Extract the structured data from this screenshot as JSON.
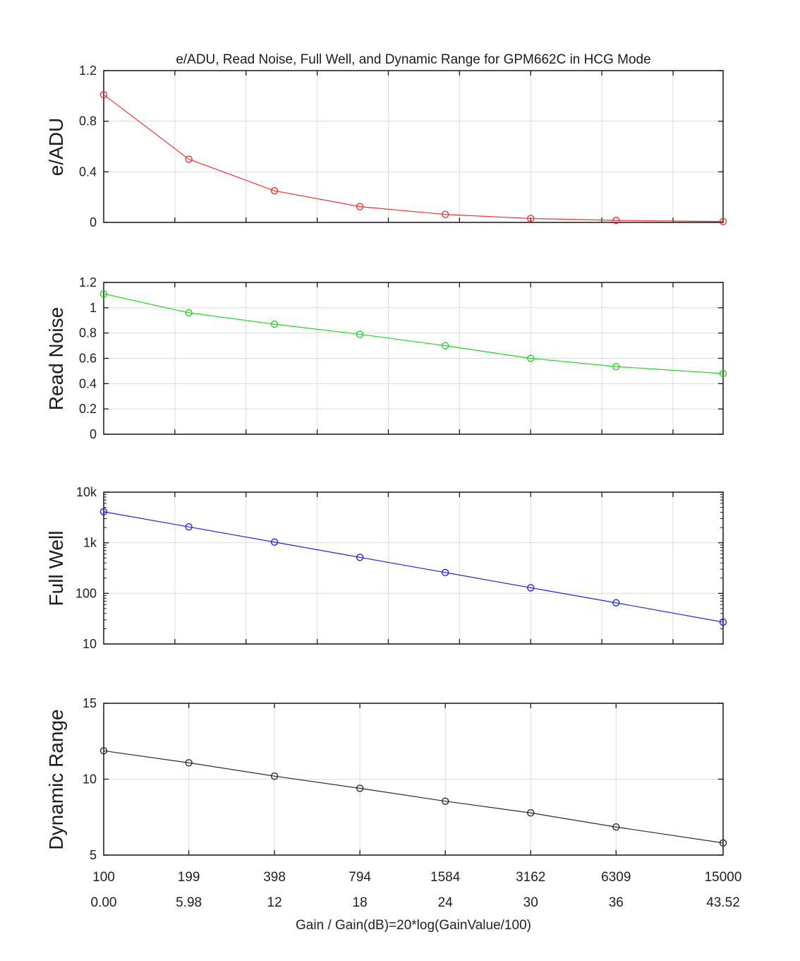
{
  "figure": {
    "title": "e/ADU, Read Noise, Full Well, and Dynamic Range for GPM662C in HCG Mode",
    "xlabel": "Gain / Gain(dB)=20*log(GainValue/100)",
    "background": "#ffffff",
    "colors": {
      "axis": "#161616",
      "grid": "#dcdcdc",
      "tick_text": "#212121"
    }
  },
  "chart_data": {
    "type": "line",
    "title": "e/ADU, Read Noise, Full Well, and Dynamic Range for GPM662C in HCG Mode",
    "xlabel": "Gain / Gain(dB)=20*log(GainValue/100)",
    "x_gain": [
      100,
      199,
      398,
      794,
      1584,
      3162,
      6309,
      15000
    ],
    "x_db": [
      0,
      5.98,
      12,
      18,
      24,
      30,
      36,
      43.52
    ],
    "x_tick_labels_gain": [
      "100",
      "199",
      "398",
      "794",
      "1584",
      "3162",
      "6309",
      "15000"
    ],
    "x_tick_labels_db": [
      "0.00",
      "5.98",
      "12",
      "18",
      "24",
      "30",
      "36",
      "43.52"
    ],
    "xlim_db": [
      0,
      43.52
    ],
    "grid": true,
    "legend": "none",
    "subplots": [
      {
        "name": "e-adu",
        "ylabel": "e/ADU",
        "color": "#f13131",
        "yscale": "linear",
        "ylim": [
          0,
          1.2
        ],
        "yticks": [
          0,
          0.4,
          0.8,
          1.2
        ],
        "ytick_labels": [
          "0",
          "0.4",
          "0.8",
          "1.2"
        ],
        "xgrid_db": [
          5,
          10,
          15,
          20,
          25,
          30,
          35,
          40
        ],
        "values": [
          1.01,
          0.5,
          0.25,
          0.125,
          0.063,
          0.031,
          0.016,
          0.007
        ]
      },
      {
        "name": "read-noise",
        "ylabel": "Read Noise",
        "color": "#22d422",
        "yscale": "linear",
        "ylim": [
          0,
          1.2
        ],
        "yticks": [
          0,
          0.2,
          0.4,
          0.6,
          0.8,
          1,
          1.2
        ],
        "ytick_labels": [
          "0",
          "0.2",
          "0.4",
          "0.6",
          "0.8",
          "1",
          "1.2"
        ],
        "xgrid_db": [
          5,
          10,
          15,
          20,
          25,
          30,
          35,
          40
        ],
        "values": [
          1.11,
          0.96,
          0.87,
          0.79,
          0.7,
          0.6,
          0.535,
          0.48
        ]
      },
      {
        "name": "full-well",
        "ylabel": "Full Well",
        "color": "#2323d9",
        "yscale": "log",
        "ylim": [
          10,
          10000
        ],
        "yticks": [
          10,
          100,
          1000,
          10000
        ],
        "ytick_labels": [
          "10",
          "100",
          "1k",
          "10k"
        ],
        "xgrid_db": [
          5,
          10,
          15,
          20,
          25,
          30,
          35,
          40
        ],
        "values": [
          4100,
          2060,
          1030,
          515,
          258,
          129,
          65,
          27
        ]
      },
      {
        "name": "dynamic-range",
        "ylabel": "Dynamic Range",
        "color": "#2b2b2b",
        "yscale": "linear",
        "ylim": [
          5,
          15
        ],
        "yticks": [
          5,
          10,
          15
        ],
        "ytick_labels": [
          "5",
          "10",
          "15"
        ],
        "xgrid_db": [
          5.98,
          12,
          18,
          24,
          30,
          36
        ],
        "values": [
          11.87,
          11.08,
          10.2,
          9.4,
          8.55,
          7.78,
          6.85,
          5.8
        ]
      }
    ]
  }
}
